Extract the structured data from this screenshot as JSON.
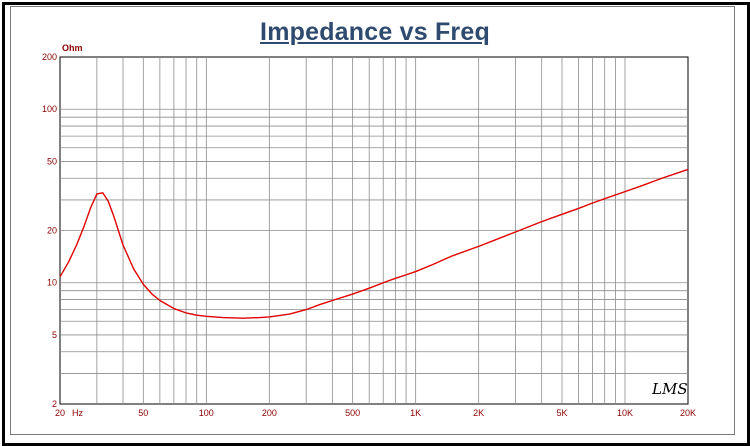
{
  "chart_data": {
    "type": "line",
    "title": "Impedance vs Freq",
    "ylabel": "Ohm",
    "xlabel": "",
    "xscale": "log",
    "yscale": "log",
    "xlim": [
      20,
      20000
    ],
    "ylim": [
      2,
      200
    ],
    "grid": true,
    "watermark": "LMS",
    "colors": {
      "series": "#e00000",
      "ticks": "#8B0000",
      "title": "#2e4a6e",
      "grid": "#8c8c8c"
    },
    "x_ticks": [
      {
        "value": 20,
        "label": "20"
      },
      {
        "value": 50,
        "label": "50"
      },
      {
        "value": 100,
        "label": "100"
      },
      {
        "value": 200,
        "label": "200"
      },
      {
        "value": 500,
        "label": "500"
      },
      {
        "value": 1000,
        "label": "1K"
      },
      {
        "value": 2000,
        "label": "2K"
      },
      {
        "value": 5000,
        "label": "5K"
      },
      {
        "value": 10000,
        "label": "10K"
      },
      {
        "value": 20000,
        "label": "20K"
      }
    ],
    "x_unit": "Hz",
    "y_ticks": [
      {
        "value": 2,
        "label": "2"
      },
      {
        "value": 5,
        "label": "5"
      },
      {
        "value": 10,
        "label": "10"
      },
      {
        "value": 20,
        "label": "20"
      },
      {
        "value": 50,
        "label": "50"
      },
      {
        "value": 100,
        "label": "100"
      },
      {
        "value": 200,
        "label": "200"
      }
    ],
    "series": [
      {
        "x": [
          20,
          22,
          24,
          26,
          28,
          30,
          32,
          34,
          36,
          38,
          40,
          45,
          50,
          55,
          60,
          70,
          80,
          90,
          100,
          120,
          150,
          180,
          200,
          250,
          300,
          350,
          400,
          500,
          600,
          700,
          800,
          900,
          1000,
          1200,
          1500,
          2000,
          2500,
          3000,
          4000,
          5000,
          6000,
          7000,
          8000,
          10000,
          12000,
          15000,
          20000
        ],
        "y": [
          10.8,
          13.2,
          16.5,
          21,
          27,
          32.5,
          33,
          29.5,
          24.5,
          20,
          16.5,
          12,
          9.8,
          8.6,
          7.9,
          7.1,
          6.7,
          6.5,
          6.4,
          6.3,
          6.25,
          6.3,
          6.35,
          6.6,
          7.0,
          7.5,
          7.9,
          8.6,
          9.3,
          10.0,
          10.6,
          11.1,
          11.6,
          12.7,
          14.3,
          16.2,
          18.0,
          19.6,
          22.5,
          24.8,
          26.8,
          28.8,
          30.5,
          33.5,
          36.2,
          40.0,
          45.0
        ]
      }
    ]
  }
}
